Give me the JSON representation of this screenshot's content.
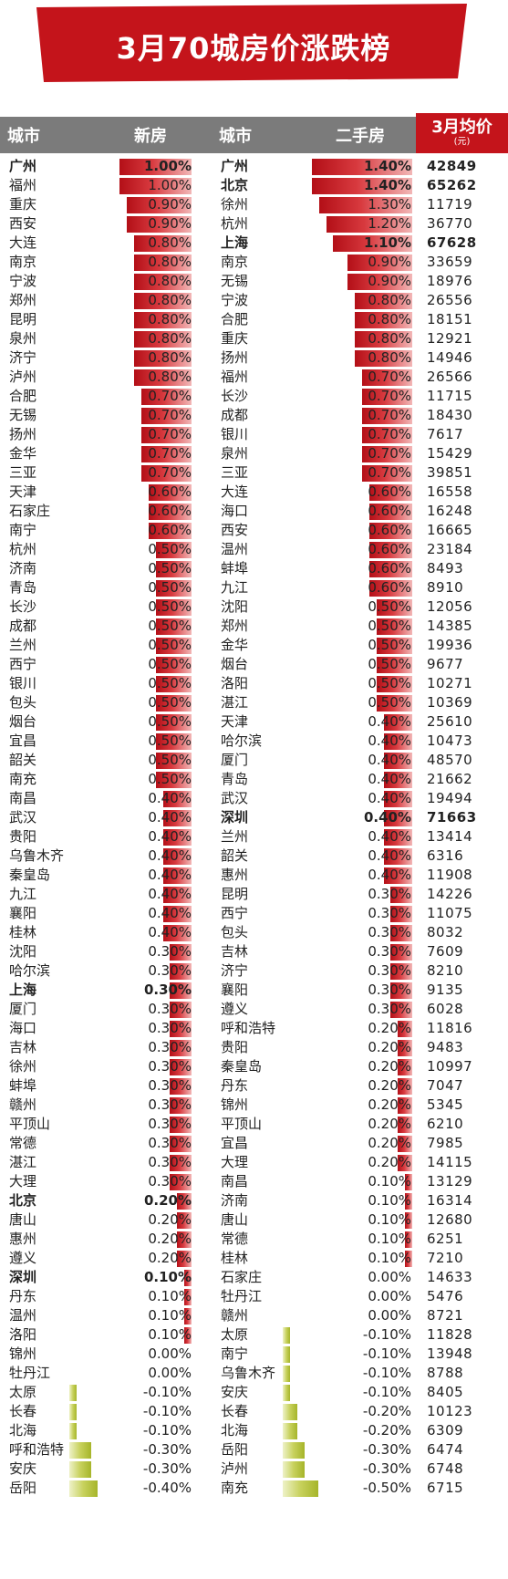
{
  "title": "3月70城房价涨跌榜",
  "header": {
    "city_new": "城市",
    "new_label": "新房",
    "city_second": "城市",
    "second_label": "二手房",
    "avg_label": "3月均价",
    "avg_unit": "(元)"
  },
  "colors": {
    "banner": "#c4141b",
    "header": "#7b7b7b",
    "positive_bar": "#c9242b",
    "negative_bar": "#b5c13c"
  },
  "chart_data": {
    "type": "table",
    "scale_max_percent": 1.5,
    "new_house": [
      {
        "city": "广州",
        "change": 1.0,
        "label": "1.00%",
        "bold": true
      },
      {
        "city": "福州",
        "change": 1.0,
        "label": "1.00%"
      },
      {
        "city": "重庆",
        "change": 0.9,
        "label": "0.90%"
      },
      {
        "city": "西安",
        "change": 0.9,
        "label": "0.90%"
      },
      {
        "city": "大连",
        "change": 0.8,
        "label": "0.80%"
      },
      {
        "city": "南京",
        "change": 0.8,
        "label": "0.80%"
      },
      {
        "city": "宁波",
        "change": 0.8,
        "label": "0.80%"
      },
      {
        "city": "郑州",
        "change": 0.8,
        "label": "0.80%"
      },
      {
        "city": "昆明",
        "change": 0.8,
        "label": "0.80%"
      },
      {
        "city": "泉州",
        "change": 0.8,
        "label": "0.80%"
      },
      {
        "city": "济宁",
        "change": 0.8,
        "label": "0.80%"
      },
      {
        "city": "泸州",
        "change": 0.8,
        "label": "0.80%"
      },
      {
        "city": "合肥",
        "change": 0.7,
        "label": "0.70%"
      },
      {
        "city": "无锡",
        "change": 0.7,
        "label": "0.70%"
      },
      {
        "city": "扬州",
        "change": 0.7,
        "label": "0.70%"
      },
      {
        "city": "金华",
        "change": 0.7,
        "label": "0.70%"
      },
      {
        "city": "三亚",
        "change": 0.7,
        "label": "0.70%"
      },
      {
        "city": "天津",
        "change": 0.6,
        "label": "0.60%"
      },
      {
        "city": "石家庄",
        "change": 0.6,
        "label": "0.60%"
      },
      {
        "city": "南宁",
        "change": 0.6,
        "label": "0.60%"
      },
      {
        "city": "杭州",
        "change": 0.5,
        "label": "0.50%"
      },
      {
        "city": "济南",
        "change": 0.5,
        "label": "0.50%"
      },
      {
        "city": "青岛",
        "change": 0.5,
        "label": "0.50%"
      },
      {
        "city": "长沙",
        "change": 0.5,
        "label": "0.50%"
      },
      {
        "city": "成都",
        "change": 0.5,
        "label": "0.50%"
      },
      {
        "city": "兰州",
        "change": 0.5,
        "label": "0.50%"
      },
      {
        "city": "西宁",
        "change": 0.5,
        "label": "0.50%"
      },
      {
        "city": "银川",
        "change": 0.5,
        "label": "0.50%"
      },
      {
        "city": "包头",
        "change": 0.5,
        "label": "0.50%"
      },
      {
        "city": "烟台",
        "change": 0.5,
        "label": "0.50%"
      },
      {
        "city": "宜昌",
        "change": 0.5,
        "label": "0.50%"
      },
      {
        "city": "韶关",
        "change": 0.5,
        "label": "0.50%"
      },
      {
        "city": "南充",
        "change": 0.5,
        "label": "0.50%"
      },
      {
        "city": "南昌",
        "change": 0.4,
        "label": "0.40%"
      },
      {
        "city": "武汉",
        "change": 0.4,
        "label": "0.40%"
      },
      {
        "city": "贵阳",
        "change": 0.4,
        "label": "0.40%"
      },
      {
        "city": "乌鲁木齐",
        "change": 0.4,
        "label": "0.40%"
      },
      {
        "city": "秦皇岛",
        "change": 0.4,
        "label": "0.40%"
      },
      {
        "city": "九江",
        "change": 0.4,
        "label": "0.40%"
      },
      {
        "city": "襄阳",
        "change": 0.4,
        "label": "0.40%"
      },
      {
        "city": "桂林",
        "change": 0.4,
        "label": "0.40%"
      },
      {
        "city": "沈阳",
        "change": 0.3,
        "label": "0.30%"
      },
      {
        "city": "哈尔滨",
        "change": 0.3,
        "label": "0.30%"
      },
      {
        "city": "上海",
        "change": 0.3,
        "label": "0.30%",
        "bold": true
      },
      {
        "city": "厦门",
        "change": 0.3,
        "label": "0.30%"
      },
      {
        "city": "海口",
        "change": 0.3,
        "label": "0.30%"
      },
      {
        "city": "吉林",
        "change": 0.3,
        "label": "0.30%"
      },
      {
        "city": "徐州",
        "change": 0.3,
        "label": "0.30%"
      },
      {
        "city": "蚌埠",
        "change": 0.3,
        "label": "0.30%"
      },
      {
        "city": "赣州",
        "change": 0.3,
        "label": "0.30%"
      },
      {
        "city": "平顶山",
        "change": 0.3,
        "label": "0.30%"
      },
      {
        "city": "常德",
        "change": 0.3,
        "label": "0.30%"
      },
      {
        "city": "湛江",
        "change": 0.3,
        "label": "0.30%"
      },
      {
        "city": "大理",
        "change": 0.3,
        "label": "0.30%"
      },
      {
        "city": "北京",
        "change": 0.2,
        "label": "0.20%",
        "bold": true
      },
      {
        "city": "唐山",
        "change": 0.2,
        "label": "0.20%"
      },
      {
        "city": "惠州",
        "change": 0.2,
        "label": "0.20%"
      },
      {
        "city": "遵义",
        "change": 0.2,
        "label": "0.20%"
      },
      {
        "city": "深圳",
        "change": 0.1,
        "label": "0.10%",
        "bold": true
      },
      {
        "city": "丹东",
        "change": 0.1,
        "label": "0.10%"
      },
      {
        "city": "温州",
        "change": 0.1,
        "label": "0.10%"
      },
      {
        "city": "洛阳",
        "change": 0.1,
        "label": "0.10%"
      },
      {
        "city": "锦州",
        "change": 0.0,
        "label": "0.00%"
      },
      {
        "city": "牡丹江",
        "change": 0.0,
        "label": "0.00%"
      },
      {
        "city": "太原",
        "change": -0.1,
        "label": "-0.10%"
      },
      {
        "city": "长春",
        "change": -0.1,
        "label": "-0.10%"
      },
      {
        "city": "北海",
        "change": -0.1,
        "label": "-0.10%"
      },
      {
        "city": "呼和浩特",
        "change": -0.3,
        "label": "-0.30%"
      },
      {
        "city": "安庆",
        "change": -0.3,
        "label": "-0.30%"
      },
      {
        "city": "岳阳",
        "change": -0.4,
        "label": "-0.40%"
      }
    ],
    "second_hand": [
      {
        "city": "广州",
        "change": 1.4,
        "label": "1.40%",
        "price": "42849",
        "bold": true
      },
      {
        "city": "北京",
        "change": 1.4,
        "label": "1.40%",
        "price": "65262",
        "bold": true
      },
      {
        "city": "徐州",
        "change": 1.3,
        "label": "1.30%",
        "price": "11719"
      },
      {
        "city": "杭州",
        "change": 1.2,
        "label": "1.20%",
        "price": "36770"
      },
      {
        "city": "上海",
        "change": 1.1,
        "label": "1.10%",
        "price": "67628",
        "bold": true
      },
      {
        "city": "南京",
        "change": 0.9,
        "label": "0.90%",
        "price": "33659"
      },
      {
        "city": "无锡",
        "change": 0.9,
        "label": "0.90%",
        "price": "18976"
      },
      {
        "city": "宁波",
        "change": 0.8,
        "label": "0.80%",
        "price": "26556"
      },
      {
        "city": "合肥",
        "change": 0.8,
        "label": "0.80%",
        "price": "18151"
      },
      {
        "city": "重庆",
        "change": 0.8,
        "label": "0.80%",
        "price": "12921"
      },
      {
        "city": "扬州",
        "change": 0.8,
        "label": "0.80%",
        "price": "14946"
      },
      {
        "city": "福州",
        "change": 0.7,
        "label": "0.70%",
        "price": "26566"
      },
      {
        "city": "长沙",
        "change": 0.7,
        "label": "0.70%",
        "price": "11715"
      },
      {
        "city": "成都",
        "change": 0.7,
        "label": "0.70%",
        "price": "18430"
      },
      {
        "city": "银川",
        "change": 0.7,
        "label": "0.70%",
        "price": "7617"
      },
      {
        "city": "泉州",
        "change": 0.7,
        "label": "0.70%",
        "price": "15429"
      },
      {
        "city": "三亚",
        "change": 0.7,
        "label": "0.70%",
        "price": "39851"
      },
      {
        "city": "大连",
        "change": 0.6,
        "label": "0.60%",
        "price": "16558"
      },
      {
        "city": "海口",
        "change": 0.6,
        "label": "0.60%",
        "price": "16248"
      },
      {
        "city": "西安",
        "change": 0.6,
        "label": "0.60%",
        "price": "16665"
      },
      {
        "city": "温州",
        "change": 0.6,
        "label": "0.60%",
        "price": "23184"
      },
      {
        "city": "蚌埠",
        "change": 0.6,
        "label": "0.60%",
        "price": "8493"
      },
      {
        "city": "九江",
        "change": 0.6,
        "label": "0.60%",
        "price": "8910"
      },
      {
        "city": "沈阳",
        "change": 0.5,
        "label": "0.50%",
        "price": "12056"
      },
      {
        "city": "郑州",
        "change": 0.5,
        "label": "0.50%",
        "price": "14385"
      },
      {
        "city": "金华",
        "change": 0.5,
        "label": "0.50%",
        "price": "19936"
      },
      {
        "city": "烟台",
        "change": 0.5,
        "label": "0.50%",
        "price": "9677"
      },
      {
        "city": "洛阳",
        "change": 0.5,
        "label": "0.50%",
        "price": "10271"
      },
      {
        "city": "湛江",
        "change": 0.5,
        "label": "0.50%",
        "price": "10369"
      },
      {
        "city": "天津",
        "change": 0.4,
        "label": "0.40%",
        "price": "25610"
      },
      {
        "city": "哈尔滨",
        "change": 0.4,
        "label": "0.40%",
        "price": "10473"
      },
      {
        "city": "厦门",
        "change": 0.4,
        "label": "0.40%",
        "price": "48570"
      },
      {
        "city": "青岛",
        "change": 0.4,
        "label": "0.40%",
        "price": "21662"
      },
      {
        "city": "武汉",
        "change": 0.4,
        "label": "0.40%",
        "price": "19494"
      },
      {
        "city": "深圳",
        "change": 0.4,
        "label": "0.40%",
        "price": "71663",
        "bold": true
      },
      {
        "city": "兰州",
        "change": 0.4,
        "label": "0.40%",
        "price": "13414"
      },
      {
        "city": "韶关",
        "change": 0.4,
        "label": "0.40%",
        "price": "6316"
      },
      {
        "city": "惠州",
        "change": 0.4,
        "label": "0.40%",
        "price": "11908"
      },
      {
        "city": "昆明",
        "change": 0.3,
        "label": "0.30%",
        "price": "14226"
      },
      {
        "city": "西宁",
        "change": 0.3,
        "label": "0.30%",
        "price": "11075"
      },
      {
        "city": "包头",
        "change": 0.3,
        "label": "0.30%",
        "price": "8032"
      },
      {
        "city": "吉林",
        "change": 0.3,
        "label": "0.30%",
        "price": "7609"
      },
      {
        "city": "济宁",
        "change": 0.3,
        "label": "0.30%",
        "price": "8210"
      },
      {
        "city": "襄阳",
        "change": 0.3,
        "label": "0.30%",
        "price": "9135"
      },
      {
        "city": "遵义",
        "change": 0.3,
        "label": "0.30%",
        "price": "6028"
      },
      {
        "city": "呼和浩特",
        "change": 0.2,
        "label": "0.20%",
        "price": "11816"
      },
      {
        "city": "贵阳",
        "change": 0.2,
        "label": "0.20%",
        "price": "9483"
      },
      {
        "city": "秦皇岛",
        "change": 0.2,
        "label": "0.20%",
        "price": "10997"
      },
      {
        "city": "丹东",
        "change": 0.2,
        "label": "0.20%",
        "price": "7047"
      },
      {
        "city": "锦州",
        "change": 0.2,
        "label": "0.20%",
        "price": "5345"
      },
      {
        "city": "平顶山",
        "change": 0.2,
        "label": "0.20%",
        "price": "6210"
      },
      {
        "city": "宜昌",
        "change": 0.2,
        "label": "0.20%",
        "price": "7985"
      },
      {
        "city": "大理",
        "change": 0.2,
        "label": "0.20%",
        "price": "14115"
      },
      {
        "city": "南昌",
        "change": 0.1,
        "label": "0.10%",
        "price": "13129"
      },
      {
        "city": "济南",
        "change": 0.1,
        "label": "0.10%",
        "price": "16314"
      },
      {
        "city": "唐山",
        "change": 0.1,
        "label": "0.10%",
        "price": "12680"
      },
      {
        "city": "常德",
        "change": 0.1,
        "label": "0.10%",
        "price": "6251"
      },
      {
        "city": "桂林",
        "change": 0.1,
        "label": "0.10%",
        "price": "7210"
      },
      {
        "city": "石家庄",
        "change": 0.0,
        "label": "0.00%",
        "price": "14633"
      },
      {
        "city": "牡丹江",
        "change": 0.0,
        "label": "0.00%",
        "price": "5476"
      },
      {
        "city": "赣州",
        "change": 0.0,
        "label": "0.00%",
        "price": "8721"
      },
      {
        "city": "太原",
        "change": -0.1,
        "label": "-0.10%",
        "price": "11828"
      },
      {
        "city": "南宁",
        "change": -0.1,
        "label": "-0.10%",
        "price": "13948"
      },
      {
        "city": "乌鲁木齐",
        "change": -0.1,
        "label": "-0.10%",
        "price": "8788"
      },
      {
        "city": "安庆",
        "change": -0.1,
        "label": "-0.10%",
        "price": "8405"
      },
      {
        "city": "长春",
        "change": -0.2,
        "label": "-0.20%",
        "price": "10123"
      },
      {
        "city": "北海",
        "change": -0.2,
        "label": "-0.20%",
        "price": "6309"
      },
      {
        "city": "岳阳",
        "change": -0.3,
        "label": "-0.30%",
        "price": "6474"
      },
      {
        "city": "泸州",
        "change": -0.3,
        "label": "-0.30%",
        "price": "6748"
      },
      {
        "city": "南充",
        "change": -0.5,
        "label": "-0.50%",
        "price": "6715"
      }
    ]
  }
}
